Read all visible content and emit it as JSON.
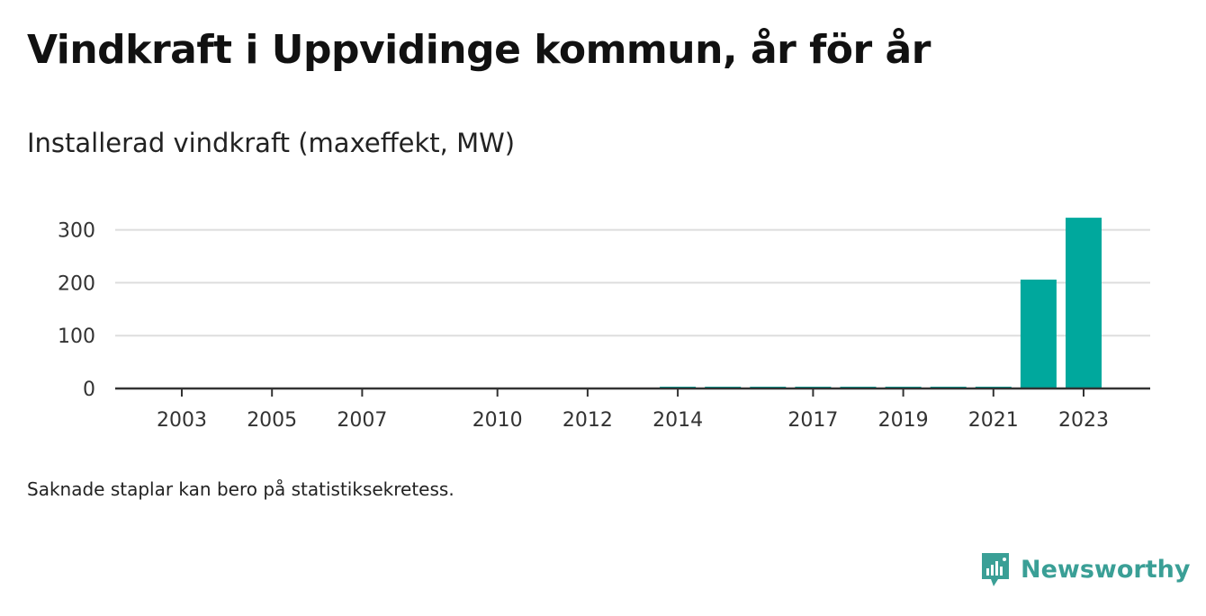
{
  "title": "Vindkraft i Uppvidinge kommun, år för år",
  "subtitle": "Installerad vindkraft (maxeffekt, MW)",
  "footnote": "Saknade staplar kan bero på statistiksekretess.",
  "brand": {
    "name": "Newsworthy",
    "icon": "newsworthy-logo-icon"
  },
  "colors": {
    "bar": "#00a89d",
    "grid": "#dddddd",
    "axis": "#333333",
    "brand": "#3a9f96"
  },
  "chart_data": {
    "type": "bar",
    "categories": [
      2003,
      2004,
      2005,
      2006,
      2007,
      2008,
      2009,
      2010,
      2011,
      2012,
      2013,
      2014,
      2015,
      2016,
      2017,
      2018,
      2019,
      2020,
      2021,
      2022,
      2023
    ],
    "values": [
      0,
      0,
      0,
      0,
      0,
      null,
      null,
      0,
      0,
      0,
      0,
      2,
      2,
      2,
      2,
      2,
      2,
      2,
      2,
      206,
      323
    ],
    "x_tick_labels": [
      "2003",
      "2005",
      "2007",
      "2010",
      "2012",
      "2014",
      "2017",
      "2019",
      "2021",
      "2023"
    ],
    "y_ticks": [
      0,
      100,
      200,
      300
    ],
    "ylim": [
      0,
      330
    ],
    "grid": true
  }
}
